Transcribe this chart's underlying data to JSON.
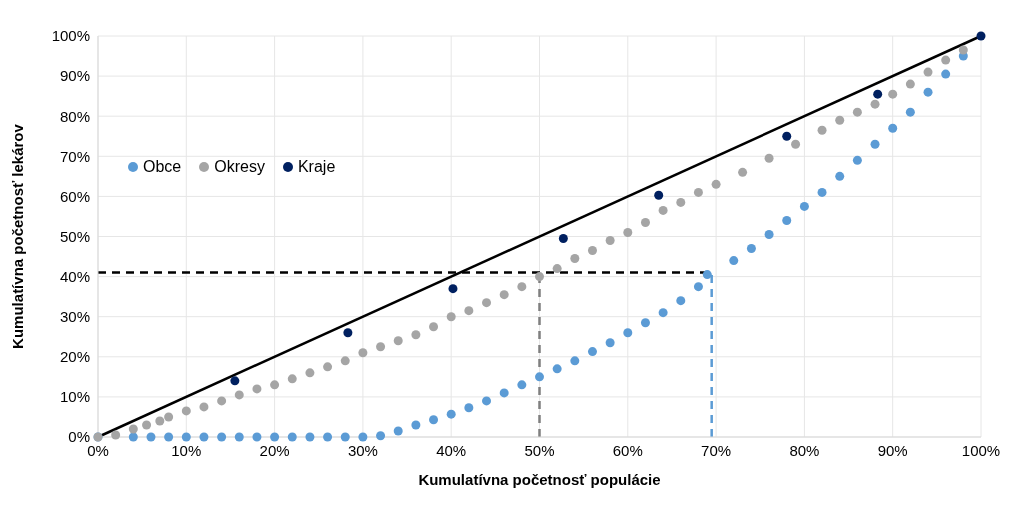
{
  "chart_data": {
    "type": "scatter",
    "xlabel": "Kumulatívna početnosť populácie",
    "ylabel": "Kumulatívna početnosť lekárov",
    "xlim": [
      0,
      100
    ],
    "ylim": [
      0,
      100
    ],
    "xticks": [
      {
        "value": 0,
        "label": "0%"
      },
      {
        "value": 10,
        "label": "10%"
      },
      {
        "value": 20,
        "label": "20%"
      },
      {
        "value": 30,
        "label": "30%"
      },
      {
        "value": 40,
        "label": "40%"
      },
      {
        "value": 50,
        "label": "50%"
      },
      {
        "value": 60,
        "label": "60%"
      },
      {
        "value": 70,
        "label": "70%"
      },
      {
        "value": 80,
        "label": "80%"
      },
      {
        "value": 90,
        "label": "90%"
      },
      {
        "value": 100,
        "label": "100%"
      }
    ],
    "yticks": [
      {
        "value": 0,
        "label": "0%"
      },
      {
        "value": 10,
        "label": "10%"
      },
      {
        "value": 20,
        "label": "20%"
      },
      {
        "value": 30,
        "label": "30%"
      },
      {
        "value": 40,
        "label": "40%"
      },
      {
        "value": 50,
        "label": "50%"
      },
      {
        "value": 60,
        "label": "60%"
      },
      {
        "value": 70,
        "label": "70%"
      },
      {
        "value": 80,
        "label": "80%"
      },
      {
        "value": 90,
        "label": "90%"
      },
      {
        "value": 100,
        "label": "100%"
      }
    ],
    "grid": true,
    "legend": "left",
    "marker": "circle",
    "series": [
      {
        "name": "Obce",
        "color": "#5b9bd5",
        "x": [
          0,
          4,
          6,
          8,
          10,
          12,
          14,
          16,
          18,
          20,
          22,
          24,
          26,
          28,
          30,
          32,
          34,
          36,
          38,
          40,
          42,
          44,
          46,
          48,
          50,
          52,
          54,
          56,
          58,
          60,
          62,
          64,
          66,
          68,
          69,
          72,
          74,
          76,
          78,
          80,
          82,
          84,
          86,
          88,
          90,
          92,
          94,
          96,
          98
        ],
        "values": [
          0,
          0,
          0,
          0,
          0,
          0,
          0,
          0,
          0,
          0,
          0,
          0,
          0,
          0,
          0,
          0.3,
          1.5,
          3,
          4.3,
          5.7,
          7.3,
          9,
          11,
          13,
          15,
          17,
          19,
          21.3,
          23.5,
          26,
          28.5,
          31,
          34,
          37.5,
          40.5,
          44,
          47,
          50.5,
          54,
          57.5,
          61,
          65,
          69,
          73,
          77,
          81,
          86,
          90.5,
          95
        ]
      },
      {
        "name": "Okresy",
        "color": "#a5a5a5",
        "x": [
          0,
          2,
          4,
          5.5,
          7,
          8,
          10,
          12,
          14,
          16,
          18,
          20,
          22,
          24,
          26,
          28,
          30,
          32,
          34,
          36,
          38,
          40,
          42,
          44,
          46,
          48,
          50,
          52,
          54,
          56,
          58,
          60,
          62,
          64,
          66,
          68,
          70,
          73,
          76,
          79,
          82,
          84,
          86,
          88,
          90,
          92,
          94,
          96,
          98
        ],
        "values": [
          0,
          0.5,
          2,
          3,
          4,
          5,
          6.5,
          7.5,
          9,
          10.5,
          12,
          13,
          14.5,
          16,
          17.5,
          19,
          21,
          22.5,
          24,
          25.5,
          27.5,
          30,
          31.5,
          33.5,
          35.5,
          37.5,
          40,
          42,
          44.5,
          46.5,
          49,
          51,
          53.5,
          56.5,
          58.5,
          61,
          63,
          66,
          69.5,
          73,
          76.5,
          79,
          81,
          83,
          85.5,
          88,
          91,
          94,
          96.5
        ]
      },
      {
        "name": "Kraje",
        "color": "#002060",
        "x": [
          15.5,
          28.3,
          40.2,
          52.7,
          63.5,
          78,
          88.3,
          100
        ],
        "values": [
          14,
          26,
          37,
          49.5,
          60.3,
          75,
          85.5,
          100
        ]
      },
      {
        "type": "line",
        "marker": "none",
        "color": "#000000",
        "x": [
          0,
          100
        ],
        "values": [
          0,
          100
        ]
      }
    ],
    "ref_lines": [
      {
        "axis": "y",
        "value": 41,
        "color": "#000000",
        "line_style": "dashed"
      },
      {
        "axis": "x",
        "value": 50,
        "color": "#7f7f7f",
        "line_style": "dashed"
      },
      {
        "axis": "x",
        "value": 69.5,
        "color": "#5b9bd5",
        "line_style": "dashed"
      }
    ]
  }
}
